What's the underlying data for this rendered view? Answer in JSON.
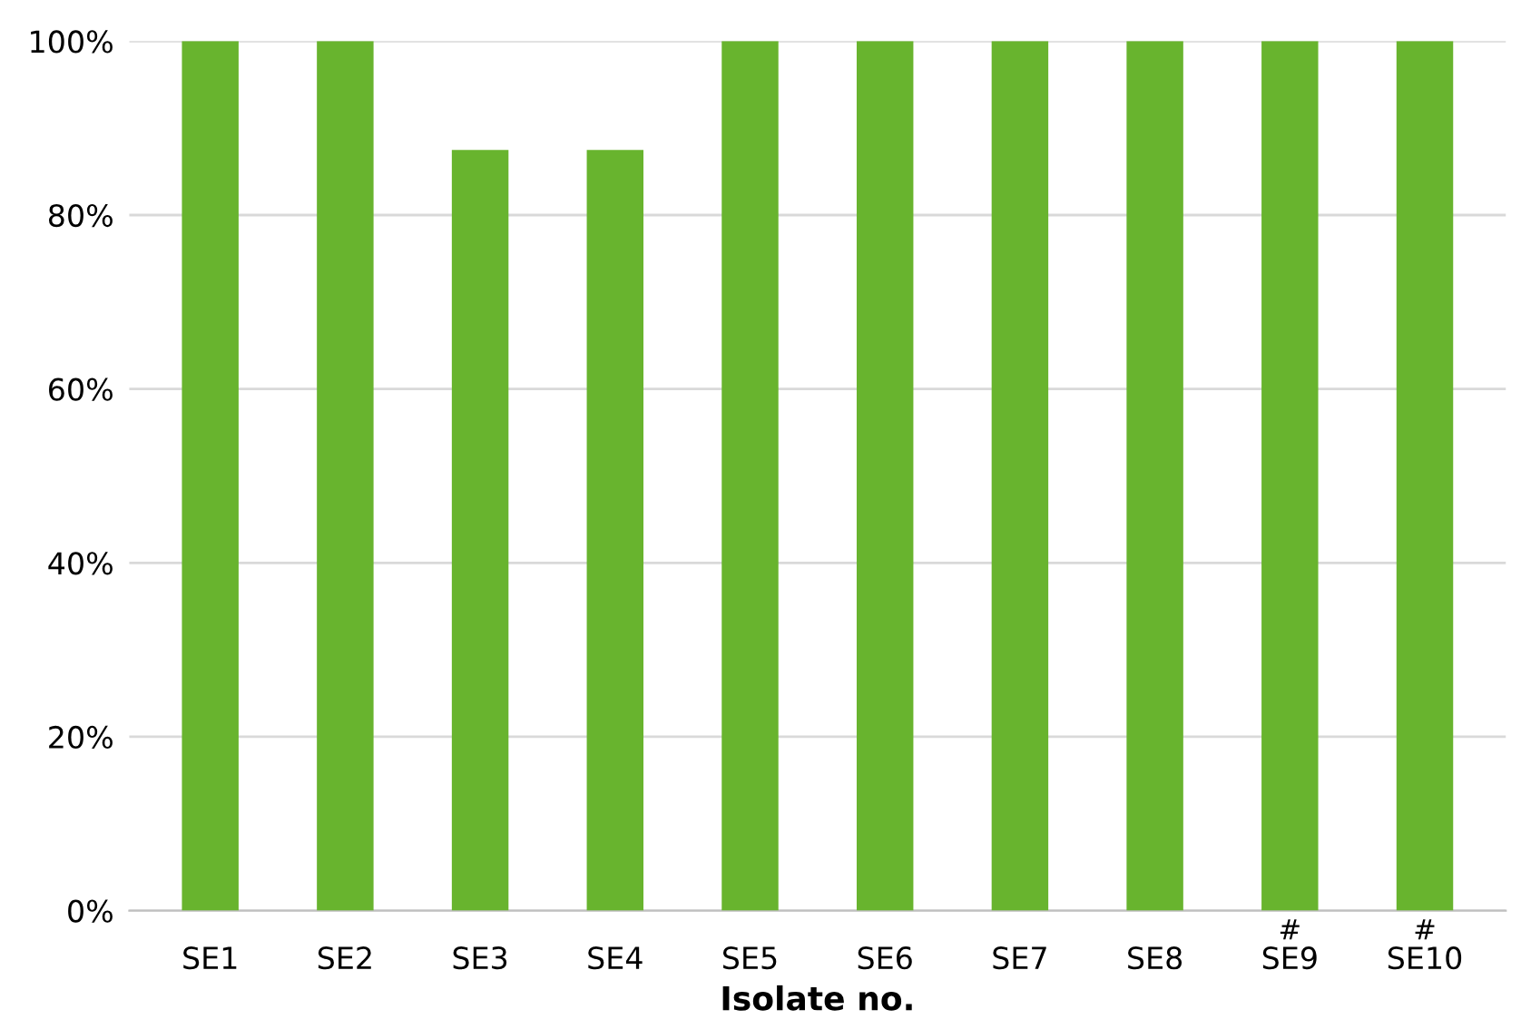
{
  "chart_data": {
    "type": "bar",
    "xlabel": "Isolate no.",
    "categories": [
      "SE1",
      "SE2",
      "SE3",
      "SE4",
      "SE5",
      "SE6",
      "SE7",
      "SE8",
      "SE9",
      "SE10"
    ],
    "values": [
      100,
      100,
      87.5,
      87.5,
      100,
      100,
      100,
      100,
      100,
      100
    ],
    "color": "#68b42e",
    "ylim": [
      0,
      100
    ],
    "yticks": [
      {
        "value": 0,
        "label": "0%"
      },
      {
        "value": 20,
        "label": "20%"
      },
      {
        "value": 40,
        "label": "40%"
      },
      {
        "value": 60,
        "label": "60%"
      },
      {
        "value": 80,
        "label": "80%"
      },
      {
        "value": 100,
        "label": "100%"
      }
    ],
    "grid": "y",
    "annotations": [
      {
        "text": "#",
        "x": "SE9",
        "y": 0
      },
      {
        "text": "#",
        "x": "SE10",
        "y": 0
      }
    ]
  }
}
